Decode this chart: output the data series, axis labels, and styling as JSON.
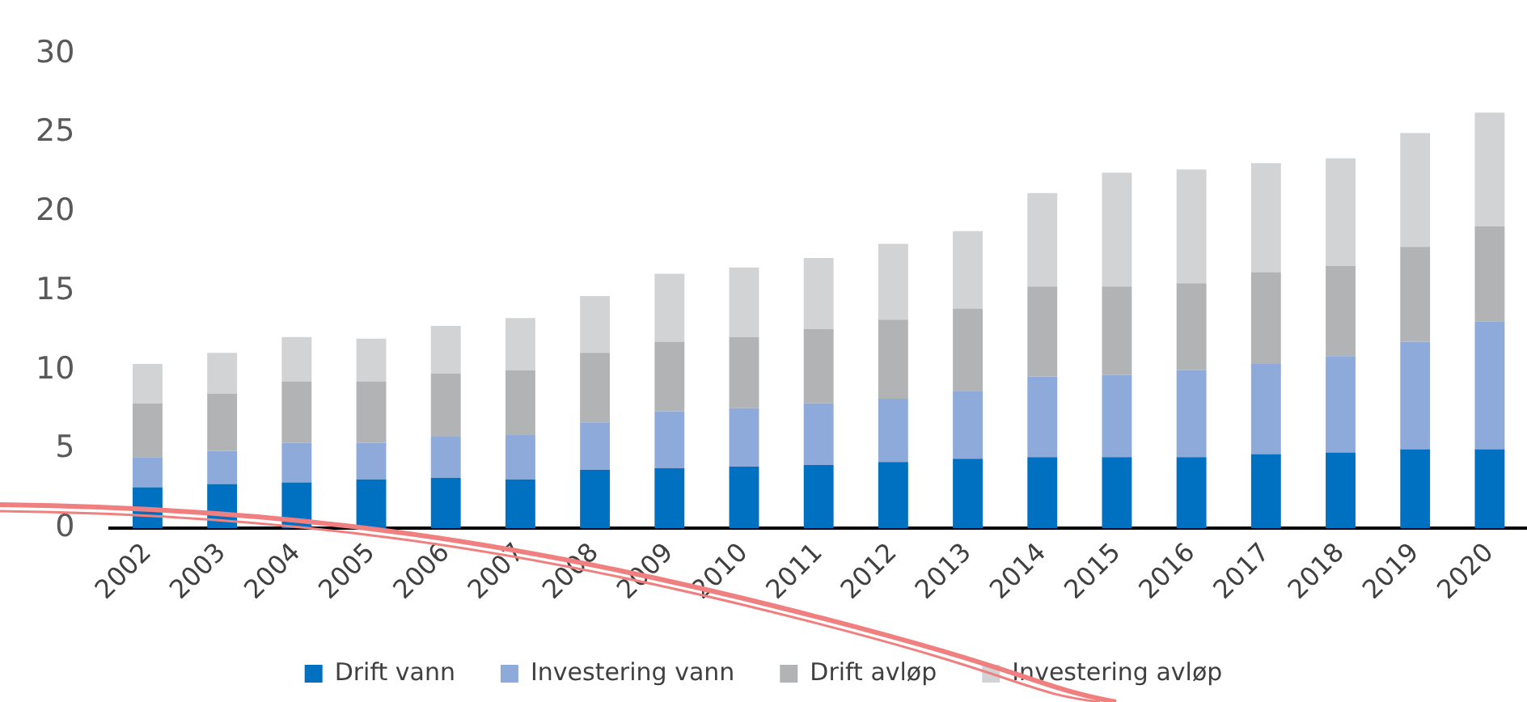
{
  "chart_data": {
    "type": "bar",
    "stacked": true,
    "categories": [
      "2002",
      "2003",
      "2004",
      "2005",
      "2006",
      "2007",
      "2008",
      "2009",
      "2010",
      "2011",
      "2012",
      "2013",
      "2014",
      "2015",
      "2016",
      "2017",
      "2018",
      "2019",
      "2020"
    ],
    "series": [
      {
        "name": "Drift vann",
        "color": "#0070c0",
        "values": [
          2.6,
          2.8,
          2.9,
          3.1,
          3.2,
          3.1,
          3.7,
          3.8,
          3.9,
          4.0,
          4.2,
          4.4,
          4.5,
          4.5,
          4.5,
          4.7,
          4.8,
          5.0,
          5.0
        ]
      },
      {
        "name": "Investering vann",
        "color": "#8eaadb",
        "values": [
          1.9,
          2.1,
          2.5,
          2.3,
          2.6,
          2.8,
          3.0,
          3.6,
          3.7,
          3.9,
          4.0,
          4.3,
          5.1,
          5.2,
          5.5,
          5.7,
          6.1,
          6.8,
          8.1
        ]
      },
      {
        "name": "Drift avløp",
        "color": "#b2b3b5",
        "values": [
          3.4,
          3.6,
          3.9,
          3.9,
          4.0,
          4.1,
          4.4,
          4.4,
          4.5,
          4.7,
          5.0,
          5.2,
          5.7,
          5.6,
          5.5,
          5.8,
          5.7,
          6.0,
          6.0
        ]
      },
      {
        "name": "Investering avløp",
        "color": "#d2d3d5",
        "values": [
          2.5,
          2.6,
          2.8,
          2.7,
          3.0,
          3.3,
          3.6,
          4.3,
          4.4,
          4.5,
          4.8,
          4.9,
          5.9,
          7.2,
          7.2,
          6.9,
          6.8,
          7.2,
          7.2
        ]
      }
    ],
    "ylim": [
      0,
      30
    ],
    "yticks": [
      0,
      5,
      10,
      15,
      20,
      25,
      30
    ],
    "grid": false,
    "legend": "bottom"
  }
}
